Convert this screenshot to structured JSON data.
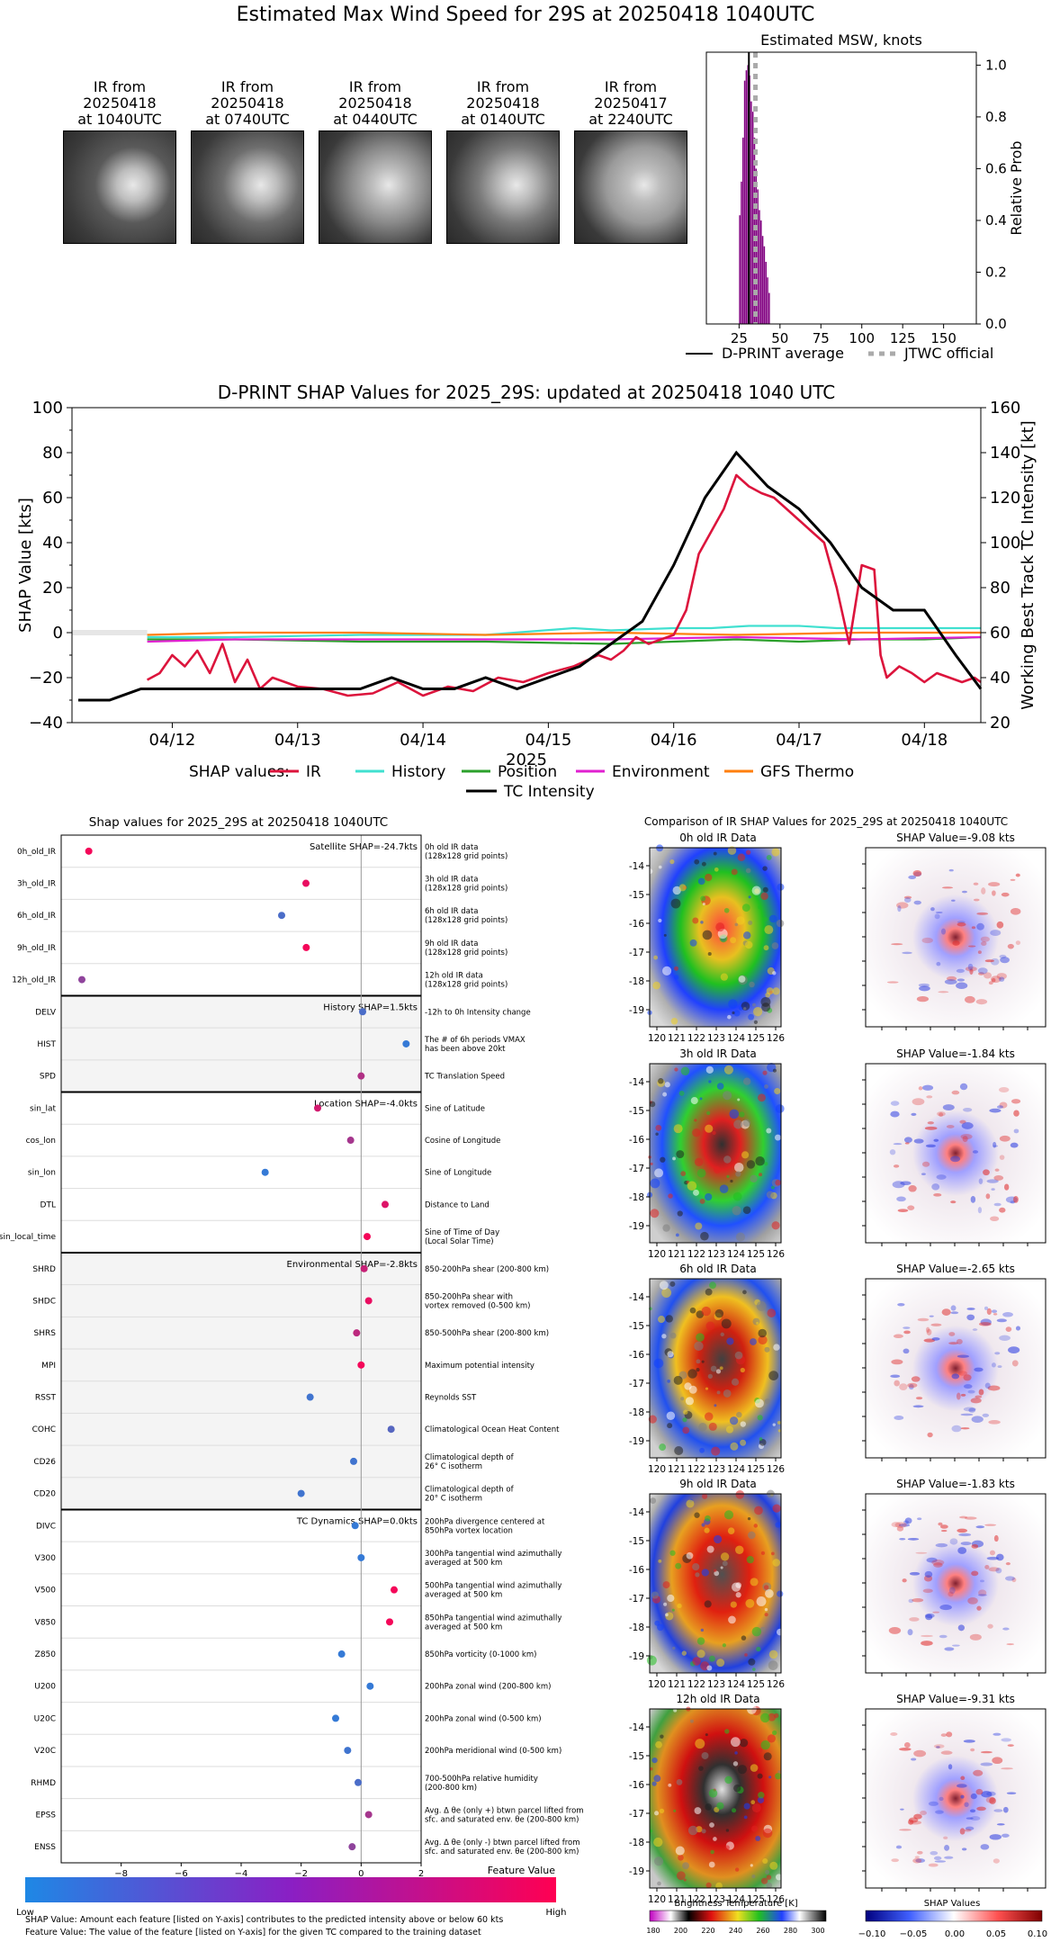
{
  "figure_title": "Estimated Max Wind Speed for 29S at 20250418 1040UTC",
  "ir_thumbnails": [
    {
      "line1": "IR from",
      "line2": "20250418",
      "line3": "at 1040UTC"
    },
    {
      "line1": "IR from",
      "line2": "20250418",
      "line3": "at 0740UTC"
    },
    {
      "line1": "IR from",
      "line2": "20250418",
      "line3": "at 0440UTC"
    },
    {
      "line1": "IR from",
      "line2": "20250418",
      "line3": "at 0140UTC"
    },
    {
      "line1": "IR from",
      "line2": "20250417",
      "line3": "at 2240UTC"
    }
  ],
  "msw_hist": {
    "title": "Estimated MSW, knots",
    "ylabel": "Relative Prob",
    "x_ticks": [
      "25",
      "50",
      "75",
      "100",
      "125",
      "150"
    ],
    "y_ticks": [
      "0.0",
      "0.2",
      "0.4",
      "0.6",
      "0.8",
      "1.0"
    ],
    "legend_dprint": "D-PRINT average",
    "legend_jtwc": "JTWC official"
  },
  "shap_ts": {
    "title": "D-PRINT SHAP Values for 2025_29S: updated at 20250418 1040 UTC",
    "ylabel_left": "SHAP Value [kts]",
    "ylabel_right": "Working Best Track TC Intensity [kt]",
    "xlabel": "2025",
    "x_ticks": [
      "04/12",
      "04/13",
      "04/14",
      "04/15",
      "04/16",
      "04/17",
      "04/18"
    ],
    "y_left_ticks": [
      "100",
      "80",
      "60",
      "40",
      "20",
      "0",
      "−20",
      "−40"
    ],
    "y_right_ticks": [
      "160",
      "140",
      "120",
      "100",
      "80",
      "60",
      "40",
      "20"
    ],
    "legend_prefix": "SHAP values:",
    "legend": [
      {
        "name": "IR",
        "color": "#dc143c"
      },
      {
        "name": "History",
        "color": "#40e0d0"
      },
      {
        "name": "Position",
        "color": "#2ca02c"
      },
      {
        "name": "Environment",
        "color": "#e020d0"
      },
      {
        "name": "GFS Thermo",
        "color": "#ff7f0e"
      }
    ],
    "legend_tc": "TC Intensity"
  },
  "feature_plot": {
    "title": "Shap values for 2025_29S at 20250418 1040UTC",
    "xlabel": "SHAP Value [kts]",
    "x_ticks": [
      "−8",
      "−6",
      "−4",
      "−2",
      "0",
      "2"
    ],
    "groups": [
      {
        "label": "Satellite SHAP=-24.7kts"
      },
      {
        "label": "History SHAP=1.5kts"
      },
      {
        "label": "Location SHAP=-4.0kts"
      },
      {
        "label": "Environmental SHAP=-2.8kts"
      },
      {
        "label": "TC Dynamics SHAP=0.0kts"
      }
    ],
    "features": [
      {
        "name": "0h_old_IR",
        "desc1": "0h old IR data",
        "desc2": "(128x128 grid points)"
      },
      {
        "name": "3h_old_IR",
        "desc1": "3h old IR data",
        "desc2": "(128x128 grid points)"
      },
      {
        "name": "6h_old_IR",
        "desc1": "6h old IR data",
        "desc2": "(128x128 grid points)"
      },
      {
        "name": "9h_old_IR",
        "desc1": "9h old IR data",
        "desc2": "(128x128 grid points)"
      },
      {
        "name": "12h_old_IR",
        "desc1": "12h old IR data",
        "desc2": "(128x128 grid points)"
      },
      {
        "name": "DELV",
        "desc1": "-12h to 0h Intensity change",
        "desc2": ""
      },
      {
        "name": "HIST",
        "desc1": "The # of 6h periods VMAX",
        "desc2": "has been above 20kt"
      },
      {
        "name": "SPD",
        "desc1": "TC Translation Speed",
        "desc2": ""
      },
      {
        "name": "sin_lat",
        "desc1": "Sine of Latitude",
        "desc2": ""
      },
      {
        "name": "cos_lon",
        "desc1": "Cosine of Longitude",
        "desc2": ""
      },
      {
        "name": "sin_lon",
        "desc1": "Sine of Longitude",
        "desc2": ""
      },
      {
        "name": "DTL",
        "desc1": "Distance to Land",
        "desc2": ""
      },
      {
        "name": "sin_local_time",
        "desc1": "Sine of Time of Day",
        "desc2": "(Local Solar Time)"
      },
      {
        "name": "SHRD",
        "desc1": "850-200hPa shear (200-800 km)",
        "desc2": ""
      },
      {
        "name": "SHDC",
        "desc1": "850-200hPa shear with",
        "desc2": "vortex removed (0-500 km)"
      },
      {
        "name": "SHRS",
        "desc1": "850-500hPa shear (200-800 km)",
        "desc2": ""
      },
      {
        "name": "MPI",
        "desc1": "Maximum potential intensity",
        "desc2": ""
      },
      {
        "name": "RSST",
        "desc1": "Reynolds SST",
        "desc2": ""
      },
      {
        "name": "COHC",
        "desc1": "Climatological Ocean Heat Content",
        "desc2": ""
      },
      {
        "name": "CD26",
        "desc1": "Climatological depth of",
        "desc2": "26° C isotherm"
      },
      {
        "name": "CD20",
        "desc1": "Climatological depth of",
        "desc2": "20° C isotherm"
      },
      {
        "name": "DIVC",
        "desc1": "200hPa divergence centered at",
        "desc2": "850hPa vortex location"
      },
      {
        "name": "V300",
        "desc1": "300hPa tangential wind azimuthally",
        "desc2": "averaged at 500 km"
      },
      {
        "name": "V500",
        "desc1": "500hPa tangential wind azimuthally",
        "desc2": "averaged at 500 km"
      },
      {
        "name": "V850",
        "desc1": "850hPa tangential wind azimuthally",
        "desc2": "averaged at 500 km"
      },
      {
        "name": "Z850",
        "desc1": "850hPa vorticity (0-1000 km)",
        "desc2": ""
      },
      {
        "name": "U200",
        "desc1": "200hPa zonal wind (200-800 km)",
        "desc2": ""
      },
      {
        "name": "U20C",
        "desc1": "200hPa zonal wind (0-500 km)",
        "desc2": ""
      },
      {
        "name": "V20C",
        "desc1": "200hPa meridional wind (0-500 km)",
        "desc2": ""
      },
      {
        "name": "RHMD",
        "desc1": "700-500hPa relative humidity",
        "desc2": "(200-800 km)"
      },
      {
        "name": "EPSS",
        "desc1": "Avg. Δ θe (only +) btwn parcel lifted from",
        "desc2": "sfc. and saturated env. θe (200-800 km)"
      },
      {
        "name": "ENSS",
        "desc1": "Avg. Δ θe (only -) btwn parcel lifted from",
        "desc2": "sfc. and saturated env. θe (200-800 km)"
      }
    ],
    "colorbar_title": "Feature Value",
    "colorbar_low": "Low",
    "colorbar_high": "High",
    "footnote1": "SHAP Value: Amount each feature [listed on Y-axis] contributes to the predicted intensity above or below 60 kts",
    "footnote2": "Feature Value: The value of the feature [listed on Y-axis] for the given TC compared to the training dataset"
  },
  "ir_compare": {
    "title": "Comparison of IR SHAP Values for 2025_29S at 20250418 1040UTC",
    "rows": [
      {
        "ir_title": "0h old IR Data",
        "shap_title": "SHAP Value=-9.08 kts"
      },
      {
        "ir_title": "3h old IR Data",
        "shap_title": "SHAP Value=-1.84 kts"
      },
      {
        "ir_title": "6h old IR Data",
        "shap_title": "SHAP Value=-2.65 kts"
      },
      {
        "ir_title": "9h old IR Data",
        "shap_title": "SHAP Value=-1.83 kts"
      },
      {
        "ir_title": "12h old IR Data",
        "shap_title": "SHAP Value=-9.31 kts"
      }
    ],
    "lon_ticks": [
      "120",
      "121",
      "122",
      "123",
      "124",
      "125",
      "126"
    ],
    "lat_ticks": [
      "-14",
      "-15",
      "-16",
      "-17",
      "-18",
      "-19"
    ],
    "bt_label": "Brightness Temperature [K]",
    "bt_ticks": [
      "180",
      "200",
      "220",
      "240",
      "260",
      "280",
      "300"
    ],
    "shap_label": "SHAP Values",
    "shap_ticks": [
      "−0.10",
      "−0.05",
      "0.00",
      "0.05",
      "0.10"
    ]
  },
  "chart_data": [
    {
      "type": "bar",
      "title": "Estimated MSW, knots",
      "xlabel": "",
      "ylabel": "Relative Prob",
      "xlim": [
        5,
        170
      ],
      "ylim": [
        0,
        1.05
      ],
      "bins_left": [
        25,
        26,
        27,
        28,
        29,
        30,
        31,
        32,
        33,
        34,
        35,
        36,
        37,
        38,
        39,
        40,
        41,
        42,
        43
      ],
      "bins_right": [
        26,
        27,
        28,
        29,
        30,
        31,
        32,
        33,
        34,
        35,
        36,
        37,
        38,
        39,
        40,
        41,
        42,
        43,
        44
      ],
      "values": [
        0.42,
        0.55,
        0.72,
        0.94,
        0.98,
        1.0,
        0.96,
        0.86,
        0.82,
        0.72,
        0.6,
        0.52,
        0.44,
        0.4,
        0.34,
        0.3,
        0.24,
        0.18,
        0.12
      ],
      "dprint_average": 31,
      "jtwc_official": 35
    },
    {
      "type": "line",
      "title": "D-PRINT SHAP Values for 2025_29S: updated at 20250418 1040 UTC",
      "xlabel": "2025",
      "ylabel": "SHAP Value [kts]",
      "ylabel_right": "Working Best Track TC Intensity [kt]",
      "xlim_days": [
        11.2,
        18.45
      ],
      "ylim": [
        -40,
        100
      ],
      "ylim_right": [
        20,
        160
      ],
      "x_tick_days": [
        12,
        13,
        14,
        15,
        16,
        17,
        18
      ],
      "tc_intensity": {
        "x": [
          11.25,
          11.5,
          11.75,
          12.0,
          12.25,
          12.5,
          12.75,
          13.0,
          13.25,
          13.5,
          13.75,
          14.0,
          14.25,
          14.5,
          14.75,
          15.0,
          15.25,
          15.5,
          15.75,
          16.0,
          16.25,
          16.5,
          16.75,
          17.0,
          17.25,
          17.5,
          17.75,
          18.0,
          18.25,
          18.45
        ],
        "y": [
          30,
          30,
          35,
          35,
          35,
          35,
          35,
          35,
          35,
          35,
          40,
          35,
          35,
          40,
          35,
          40,
          45,
          55,
          65,
          90,
          120,
          140,
          125,
          115,
          100,
          80,
          70,
          70,
          50,
          35
        ]
      },
      "series": [
        {
          "name": "IR",
          "x": [
            11.8,
            11.9,
            12.0,
            12.1,
            12.2,
            12.3,
            12.4,
            12.5,
            12.6,
            12.7,
            12.8,
            13.0,
            13.2,
            13.4,
            13.6,
            13.8,
            14.0,
            14.2,
            14.4,
            14.6,
            14.8,
            15.0,
            15.2,
            15.4,
            15.5,
            15.6,
            15.7,
            15.8,
            15.9,
            16.0,
            16.1,
            16.2,
            16.3,
            16.4,
            16.5,
            16.6,
            16.7,
            16.8,
            16.9,
            17.0,
            17.1,
            17.2,
            17.25,
            17.3,
            17.4,
            17.5,
            17.6,
            17.65,
            17.7,
            17.8,
            17.9,
            18.0,
            18.1,
            18.2,
            18.3,
            18.4,
            18.45
          ],
          "y": [
            -21,
            -18,
            -10,
            -15,
            -8,
            -18,
            -5,
            -22,
            -12,
            -25,
            -20,
            -24,
            -25,
            -28,
            -27,
            -22,
            -28,
            -24,
            -26,
            -20,
            -22,
            -18,
            -15,
            -10,
            -12,
            -8,
            -2,
            -5,
            -3,
            -1,
            10,
            35,
            45,
            55,
            70,
            65,
            62,
            60,
            55,
            50,
            45,
            40,
            30,
            20,
            -5,
            30,
            28,
            -10,
            -20,
            -15,
            -18,
            -22,
            -18,
            -20,
            -22,
            -20,
            -22
          ]
        },
        {
          "name": "History",
          "x": [
            11.8,
            12.5,
            13.5,
            14.5,
            15.2,
            15.5,
            16.0,
            16.3,
            16.6,
            17.0,
            17.3,
            17.8,
            18.45
          ],
          "y": [
            -2,
            -2,
            -1,
            -1,
            2,
            1,
            2,
            2,
            3,
            3,
            2,
            2,
            2
          ]
        },
        {
          "name": "Position",
          "x": [
            11.8,
            12.5,
            13.5,
            14.5,
            15.5,
            16.0,
            16.5,
            17.0,
            17.5,
            18.0,
            18.45
          ],
          "y": [
            -3,
            -3,
            -4,
            -4,
            -5,
            -4,
            -3,
            -4,
            -3,
            -3,
            -2
          ]
        },
        {
          "name": "Environment",
          "x": [
            11.8,
            12.5,
            13.5,
            14.5,
            15.5,
            16.5,
            17.5,
            18.45
          ],
          "y": [
            -4,
            -3,
            -3,
            -3,
            -3,
            -2,
            -3,
            -2
          ]
        },
        {
          "name": "GFS Thermo",
          "x": [
            11.8,
            12.5,
            13.5,
            14.5,
            15.5,
            16.5,
            17.5,
            18.45
          ],
          "y": [
            -1,
            0,
            0,
            -1,
            0,
            -1,
            0,
            0
          ]
        }
      ]
    },
    {
      "type": "scatter",
      "title": "Shap values for 2025_29S at 20250418 1040UTC",
      "xlabel": "SHAP Value [kts]",
      "xlim": [
        -10,
        2
      ],
      "features": [
        "0h_old_IR",
        "3h_old_IR",
        "6h_old_IR",
        "9h_old_IR",
        "12h_old_IR",
        "DELV",
        "HIST",
        "SPD",
        "sin_lat",
        "cos_lon",
        "sin_lon",
        "DTL",
        "sin_local_time",
        "SHRD",
        "SHDC",
        "SHRS",
        "MPI",
        "RSST",
        "COHC",
        "CD26",
        "CD20",
        "DIVC",
        "V300",
        "V500",
        "V850",
        "Z850",
        "U200",
        "U20C",
        "V20C",
        "RHMD",
        "EPSS",
        "ENSS"
      ],
      "shap_values": [
        -9.08,
        -1.84,
        -2.65,
        -1.83,
        -9.31,
        0.05,
        1.5,
        0.0,
        -1.45,
        -0.35,
        -3.2,
        0.8,
        0.2,
        0.1,
        0.25,
        -0.15,
        0.0,
        -1.7,
        1.0,
        -0.25,
        -2.0,
        -0.2,
        0.0,
        1.1,
        0.95,
        -0.65,
        0.3,
        -0.85,
        -0.45,
        -0.1,
        0.25,
        -0.3
      ],
      "feature_values": [
        0.95,
        0.9,
        0.2,
        0.95,
        0.5,
        0.2,
        0.1,
        0.65,
        0.8,
        0.6,
        0.1,
        0.85,
        0.95,
        0.75,
        0.9,
        0.7,
        0.95,
        0.15,
        0.25,
        0.15,
        0.15,
        0.1,
        0.1,
        0.95,
        0.95,
        0.1,
        0.1,
        0.1,
        0.15,
        0.2,
        0.6,
        0.5
      ]
    }
  ]
}
